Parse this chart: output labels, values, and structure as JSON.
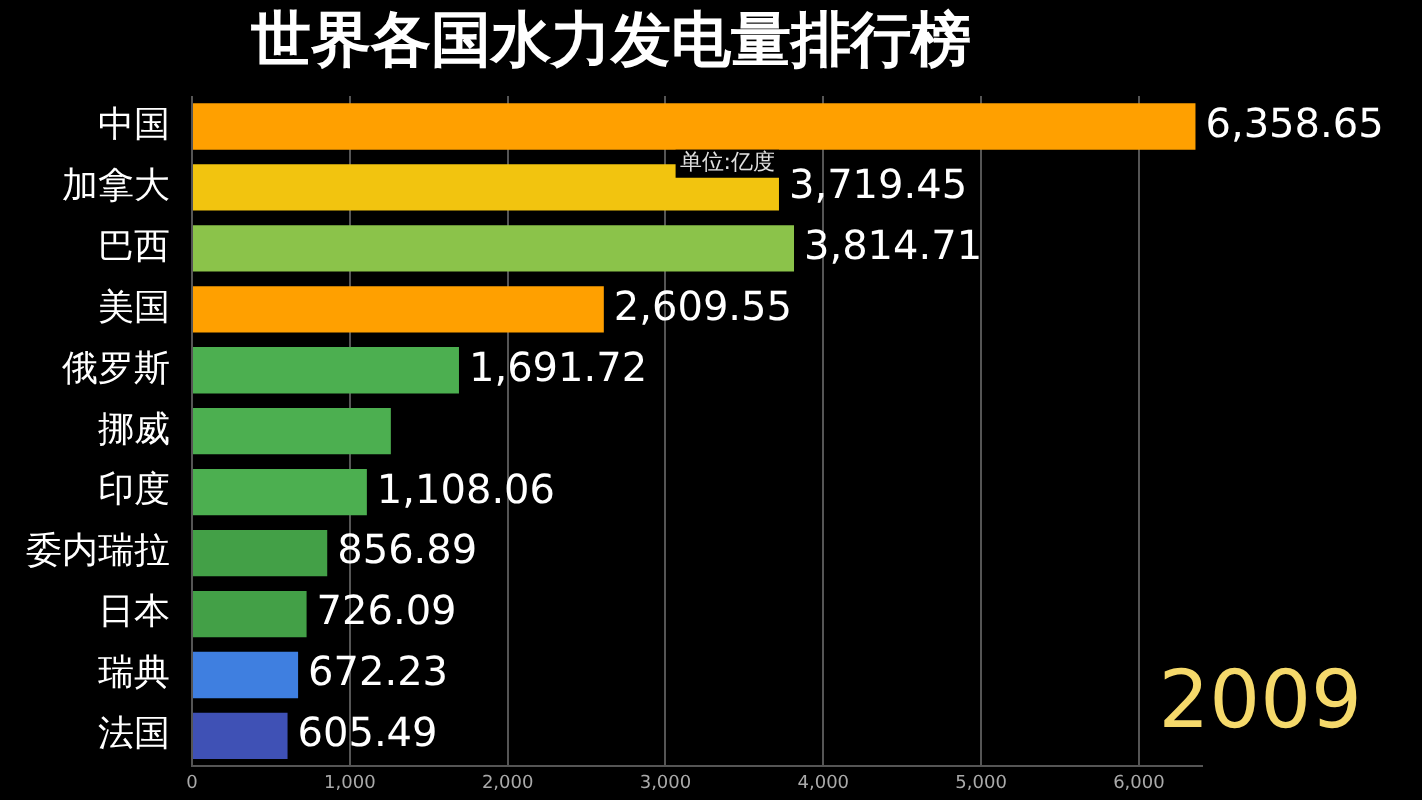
{
  "chart_data": {
    "type": "bar",
    "orientation": "horizontal",
    "title": "世界各国水力发电量排行榜",
    "categories": [
      "中国",
      "加拿大",
      "巴西",
      "美国",
      "俄罗斯",
      "挪威",
      "印度",
      "委内瑞拉",
      "日本",
      "瑞典",
      "法国"
    ],
    "values": [
      6358.65,
      3719.45,
      3814.71,
      2609.55,
      1691.72,
      1260,
      1108.06,
      856.89,
      726.09,
      672.23,
      605.49
    ],
    "colors": [
      "#ffa000",
      "#f2c40f",
      "#8bc34a",
      "#ffa000",
      "#4caf50",
      "#4caf50",
      "#4caf50",
      "#43a047",
      "#43a047",
      "#3f7fe0",
      "#3f51b5"
    ],
    "value_labels": [
      "6,358.65",
      "3,719.45",
      "3,814.71",
      "2,609.55",
      "1,691.72",
      null,
      "1,108.06",
      "856.89",
      "726.09",
      "672.23",
      "605.49"
    ],
    "xlim": [
      0,
      6400
    ],
    "xticks": [
      {
        "value": 0,
        "label": "0"
      },
      {
        "value": 1000,
        "label": "1,000"
      },
      {
        "value": 2000,
        "label": "2,000"
      },
      {
        "value": 3000,
        "label": "3,000"
      },
      {
        "value": 4000,
        "label": "4,000"
      },
      {
        "value": 5000,
        "label": "5,000"
      },
      {
        "value": 6000,
        "label": "6,000"
      }
    ],
    "grid": "x",
    "legend": false,
    "annotations": [
      "单位:亿度",
      "2009"
    ]
  }
}
